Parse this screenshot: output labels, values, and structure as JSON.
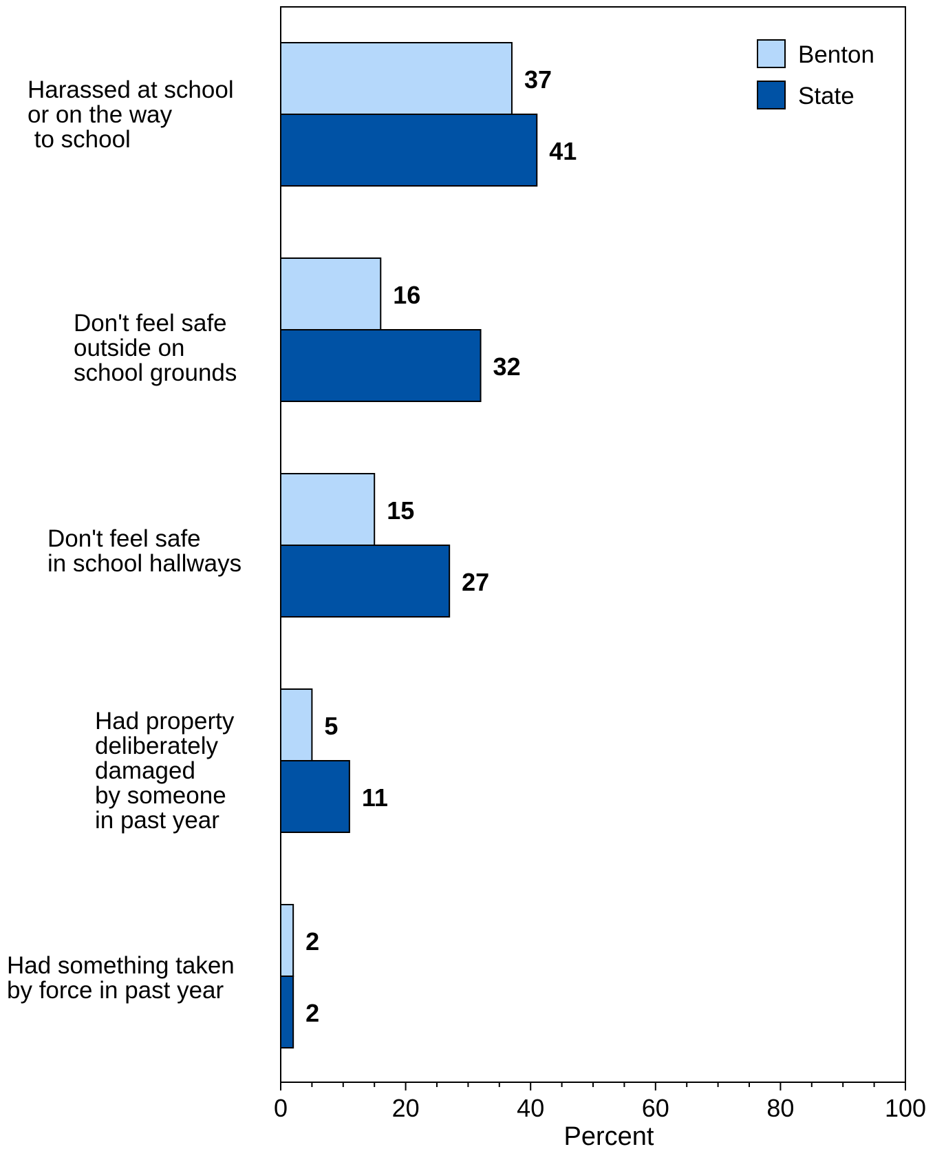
{
  "chart_data": {
    "type": "bar",
    "orientation": "horizontal",
    "categories": [
      "Harassed at school\nor on the way\n to school",
      "Don't feel safe\noutside on\nschool grounds",
      "Don't feel safe\nin school hallways",
      "Had property\ndeliberately\ndamaged\nby someone\nin past year",
      "Had something taken\nby force in past year"
    ],
    "series": [
      {
        "name": "Benton",
        "values": [
          37,
          16,
          15,
          5,
          2
        ],
        "color": "#b5d8fb"
      },
      {
        "name": "State",
        "values": [
          41,
          32,
          27,
          11,
          2
        ],
        "color": "#0052a5"
      }
    ],
    "xlabel": "Percent",
    "xlim": [
      0,
      100
    ],
    "xticks": [
      "0",
      "20",
      "40",
      "60",
      "80",
      "100"
    ],
    "legend_position": "top-right",
    "grid": false,
    "data_labels": true
  }
}
